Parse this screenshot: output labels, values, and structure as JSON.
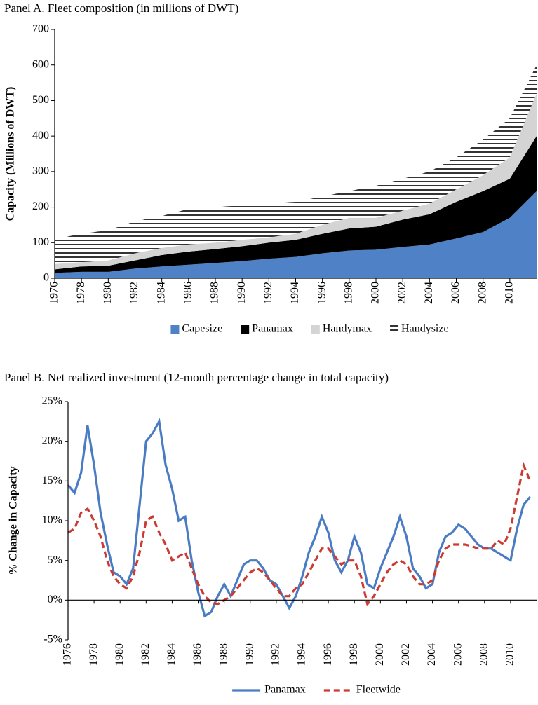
{
  "chart_data": [
    {
      "type": "area",
      "title": "Panel A. Fleet composition (in millions of DWT)",
      "y_label": "Capacity (Millions of DWT)",
      "x": [
        1976,
        1978,
        1980,
        1982,
        1984,
        1986,
        1988,
        1990,
        1992,
        1994,
        1996,
        1998,
        2000,
        2002,
        2004,
        2006,
        2008,
        2010,
        2012
      ],
      "series": [
        {
          "name": "Capesize",
          "color": "#4f81c7",
          "values": [
            15,
            18,
            18,
            27,
            33,
            38,
            43,
            48,
            55,
            60,
            70,
            78,
            80,
            88,
            95,
            112,
            130,
            170,
            245
          ]
        },
        {
          "name": "Panamax",
          "color": "#000000",
          "values": [
            10,
            15,
            17,
            23,
            32,
            37,
            39,
            42,
            45,
            48,
            55,
            62,
            65,
            77,
            85,
            103,
            115,
            110,
            155
          ]
        },
        {
          "name": "Handymax",
          "color": "#d4d4d4",
          "values": [
            15,
            12,
            15,
            20,
            20,
            20,
            18,
            18,
            15,
            17,
            25,
            30,
            25,
            25,
            30,
            35,
            45,
            60,
            120
          ]
        },
        {
          "name": "Handysize",
          "color": "#000000",
          "hatch": "horizontal",
          "values": [
            70,
            80,
            85,
            90,
            90,
            100,
            100,
            97,
            95,
            90,
            80,
            75,
            90,
            90,
            90,
            90,
            100,
            110,
            80
          ]
        }
      ],
      "xlim": [
        1976,
        2012
      ],
      "xticks": [
        1976,
        1978,
        1980,
        1982,
        1984,
        1986,
        1988,
        1990,
        1992,
        1994,
        1996,
        1998,
        2000,
        2002,
        2004,
        2006,
        2008,
        2010
      ],
      "ylim": [
        0,
        700
      ],
      "yticks": [
        0,
        100,
        200,
        300,
        400,
        500,
        600,
        700
      ],
      "legend": "bottom"
    },
    {
      "type": "line",
      "title": "Panel B. Net realized investment (12-month percentage change in total capacity)",
      "y_label": "% Change in Capacity",
      "x": [
        1976,
        1976.5,
        1977,
        1977.5,
        1978,
        1978.5,
        1979,
        1979.5,
        1980,
        1980.5,
        1981,
        1981.5,
        1982,
        1982.5,
        1983,
        1983.5,
        1984,
        1984.5,
        1985,
        1985.5,
        1986,
        1986.5,
        1987,
        1987.5,
        1988,
        1988.5,
        1989,
        1989.5,
        1990,
        1990.5,
        1991,
        1991.5,
        1992,
        1992.5,
        1993,
        1993.5,
        1994,
        1994.5,
        1995,
        1995.5,
        1996,
        1996.5,
        1997,
        1997.5,
        1998,
        1998.5,
        1999,
        1999.5,
        2000,
        2000.5,
        2001,
        2001.5,
        2002,
        2002.5,
        2003,
        2003.5,
        2004,
        2004.5,
        2005,
        2005.5,
        2006,
        2006.5,
        2007,
        2007.5,
        2008,
        2008.5,
        2009,
        2009.5,
        2010,
        2010.5,
        2011,
        2011.5
      ],
      "series": [
        {
          "name": "Panamax",
          "color": "#4a7cc4",
          "line_style": "solid",
          "values": [
            14.5,
            13.5,
            16,
            22,
            17,
            11,
            7,
            3.5,
            3,
            2,
            4,
            12,
            20,
            21,
            22.5,
            17,
            14,
            10,
            10.5,
            5,
            1,
            -2,
            -1.5,
            0.5,
            2,
            0.5,
            2.5,
            4.5,
            5,
            5,
            4,
            2.5,
            2,
            0.5,
            -1,
            0.5,
            3,
            6,
            8,
            10.5,
            8.5,
            5,
            3.5,
            5,
            8,
            6,
            2,
            1.5,
            4,
            6,
            8,
            10.5,
            8,
            4,
            3,
            1.5,
            2,
            6,
            8,
            8.5,
            9.5,
            9,
            8,
            7,
            6.5,
            6.5,
            6,
            5.5,
            5,
            9,
            12,
            13
          ]
        },
        {
          "name": "Fleetwide",
          "color": "#cc3b33",
          "line_style": "dashed",
          "values": [
            8.5,
            9,
            11,
            11.5,
            10,
            8,
            5,
            3,
            2,
            1.5,
            3,
            6,
            10,
            10.5,
            8.5,
            7,
            5,
            5.5,
            6,
            4,
            2,
            0.5,
            -0.3,
            -0.5,
            0,
            0.5,
            1.5,
            2.5,
            3.5,
            4,
            3.5,
            2.5,
            1.5,
            0.5,
            0.5,
            1.5,
            2,
            3.5,
            5,
            6.5,
            6.5,
            5.5,
            4.5,
            5,
            5,
            3,
            -0.5,
            0.5,
            2,
            3.5,
            4.5,
            5,
            4.5,
            3,
            2,
            2,
            2.5,
            5,
            6.5,
            7,
            7,
            7,
            6.8,
            6.5,
            6.5,
            6.5,
            7.5,
            7,
            9,
            13,
            17,
            15
          ]
        }
      ],
      "xlim": [
        1976,
        2012
      ],
      "xticks": [
        1976,
        1978,
        1980,
        1982,
        1984,
        1986,
        1988,
        1990,
        1992,
        1994,
        1996,
        1998,
        2000,
        2002,
        2004,
        2006,
        2008,
        2010
      ],
      "ylim": [
        -5,
        25
      ],
      "yticks": [
        {
          "value": -5,
          "label": "-5%"
        },
        {
          "value": 0,
          "label": "0%"
        },
        {
          "value": 5,
          "label": "5%"
        },
        {
          "value": 10,
          "label": "10%"
        },
        {
          "value": 15,
          "label": "15%"
        },
        {
          "value": 20,
          "label": "20%"
        },
        {
          "value": 25,
          "label": "25%"
        }
      ],
      "legend": "bottom"
    }
  ]
}
